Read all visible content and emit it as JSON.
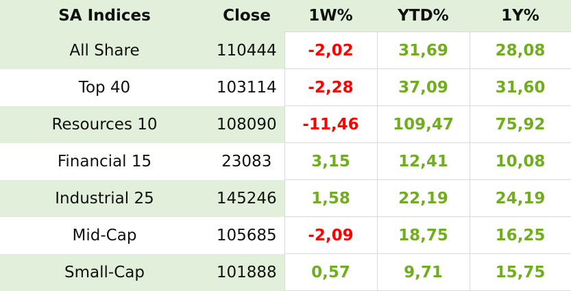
{
  "table": {
    "header": [
      "SA Indices",
      "Close",
      "1W%",
      "YTD%",
      "1Y%"
    ],
    "rows": [
      [
        "All Share",
        "110444",
        "-2,02",
        "31,69",
        "28,08"
      ],
      [
        "Top 40",
        "103114",
        "-2,28",
        "37,09",
        "31,60"
      ],
      [
        "Resources 10",
        "108090",
        "-11,46",
        "109,47",
        "75,92"
      ],
      [
        "Financial 15",
        "23083",
        "3,15",
        "12,41",
        "10,08"
      ],
      [
        "Industrial 25",
        "145246",
        "1,58",
        "22,19",
        "24,19"
      ],
      [
        "Mid-Cap",
        "105685",
        "-2,09",
        "18,75",
        "16,25"
      ],
      [
        "Small-Cap",
        "101888",
        "0,57",
        "9,71",
        "15,75"
      ]
    ]
  }
}
